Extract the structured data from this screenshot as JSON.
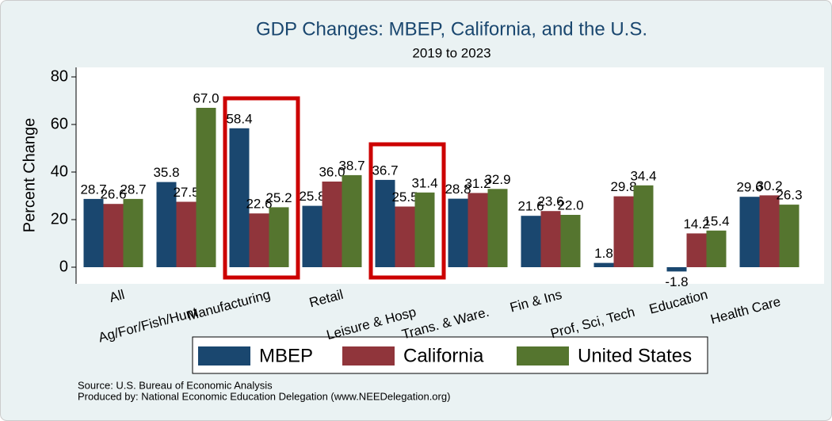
{
  "chart_data": {
    "type": "bar",
    "title": "GDP Changes: MBEP, California, and the U.S.",
    "subtitle": "2019 to 2023",
    "y_label": "Percent Change",
    "categories": [
      "All",
      "Ag/For/Fish/Hunt",
      "Manufacturing",
      "Retail",
      "Leisure & Hosp",
      "Trans. & Ware.",
      "Fin & Ins",
      "Prof, Sci, Tech",
      "Education",
      "Health Care"
    ],
    "series": [
      {
        "name": "MBEP",
        "color": "#1a476f",
        "values": [
          28.7,
          35.8,
          58.4,
          25.8,
          36.7,
          28.8,
          21.6,
          1.8,
          -1.8,
          29.6
        ],
        "value_labels": [
          "28.7",
          "35.8",
          "58.4",
          "25.8",
          "36.7",
          "28.8",
          "21.6",
          "1.8",
          "-1.8",
          "29.6"
        ]
      },
      {
        "name": "California",
        "color": "#90353b",
        "values": [
          26.6,
          27.5,
          22.6,
          36.0,
          25.5,
          31.2,
          23.6,
          29.8,
          14.2,
          30.2
        ],
        "value_labels": [
          "26.6",
          "27.5",
          "22.6",
          "36.0",
          "25.5",
          "31.2",
          "23.6",
          "29.8",
          "14.2",
          "30.2"
        ]
      },
      {
        "name": "United States",
        "color": "#55752f",
        "values": [
          28.7,
          67.0,
          25.2,
          38.7,
          31.4,
          32.9,
          22.0,
          34.4,
          15.4,
          26.3
        ],
        "value_labels": [
          "28.7",
          "67.0",
          "25.2",
          "38.7",
          "31.4",
          "32.9",
          "22.0",
          "34.4",
          "15.4",
          "26.3"
        ]
      }
    ],
    "ylim": [
      -7,
      84
    ],
    "yticks": [
      0,
      20,
      40,
      60,
      80
    ],
    "grid": false,
    "legend": "bottom",
    "highlight_color": "#cc0000",
    "notes": [
      "Source: U.S. Bureau of Economic Analysis",
      "Produced by: National Economic Education Delegation (www.NEEDelegation.org)"
    ]
  }
}
